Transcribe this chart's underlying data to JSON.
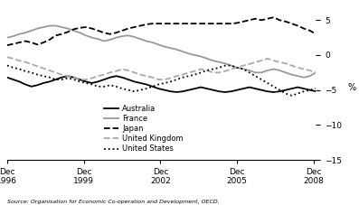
{
  "title": "",
  "ylabel": "%",
  "source_text": "Source: Organisation for Economic Co-operation and Development, OECD.",
  "ylim": [
    -15,
    7
  ],
  "yticks": [
    5,
    0,
    -5,
    -10,
    -15
  ],
  "x_start": 1996.917,
  "x_end": 2009.0,
  "xtick_positions": [
    1996.917,
    1999.917,
    2002.917,
    2005.917,
    2008.917
  ],
  "xtick_labels": [
    "Dec\n1996",
    "Dec\n1999",
    "Dec\n2002",
    "Dec\n2005",
    "Dec\n2008"
  ],
  "legend_entries": [
    "Australia",
    "France",
    "Japan",
    "United Kingdom",
    "United States"
  ],
  "line_colors": [
    "#000000",
    "#999999",
    "#000000",
    "#aaaaaa",
    "#000000"
  ],
  "line_styles": [
    "-",
    "-",
    "--",
    "--",
    ":"
  ],
  "line_widths": [
    1.3,
    1.3,
    1.3,
    1.3,
    1.3
  ],
  "background_color": "#ffffff",
  "australia": [
    -3.2,
    -3.5,
    -3.8,
    -4.2,
    -4.5,
    -4.3,
    -4.0,
    -3.8,
    -3.5,
    -3.2,
    -3.0,
    -3.2,
    -3.5,
    -3.8,
    -4.0,
    -3.8,
    -3.5,
    -3.2,
    -3.0,
    -3.2,
    -3.5,
    -3.8,
    -4.0,
    -4.2,
    -4.5,
    -4.8,
    -5.0,
    -5.2,
    -5.3,
    -5.2,
    -5.0,
    -4.8,
    -4.6,
    -4.8,
    -5.0,
    -5.2,
    -5.3,
    -5.2,
    -5.0,
    -4.8,
    -4.6,
    -4.8,
    -5.0,
    -5.2,
    -5.3,
    -5.2,
    -5.0,
    -4.8,
    -4.6,
    -4.8,
    -5.0,
    -5.2
  ],
  "france": [
    2.5,
    2.7,
    3.0,
    3.2,
    3.5,
    3.8,
    4.0,
    4.2,
    4.2,
    4.0,
    3.8,
    3.5,
    3.2,
    2.8,
    2.5,
    2.3,
    2.0,
    2.2,
    2.5,
    2.7,
    2.8,
    2.6,
    2.3,
    2.0,
    1.8,
    1.5,
    1.2,
    1.0,
    0.8,
    0.5,
    0.2,
    0.0,
    -0.2,
    -0.5,
    -0.8,
    -1.0,
    -1.2,
    -1.5,
    -1.8,
    -2.0,
    -2.2,
    -2.5,
    -2.5,
    -2.2,
    -2.0,
    -2.2,
    -2.5,
    -2.8,
    -3.0,
    -3.2,
    -3.0,
    -2.5
  ],
  "japan": [
    1.4,
    1.6,
    1.8,
    2.0,
    1.8,
    1.5,
    1.8,
    2.2,
    2.8,
    3.0,
    3.3,
    3.7,
    3.9,
    4.0,
    3.8,
    3.5,
    3.2,
    3.0,
    3.2,
    3.5,
    3.8,
    4.0,
    4.2,
    4.4,
    4.5,
    4.5,
    4.5,
    4.5,
    4.5,
    4.5,
    4.5,
    4.5,
    4.5,
    4.5,
    4.5,
    4.5,
    4.5,
    4.5,
    4.6,
    4.8,
    5.0,
    5.2,
    5.0,
    5.2,
    5.4,
    5.0,
    4.8,
    4.5,
    4.2,
    3.8,
    3.5,
    3.0
  ],
  "uk": [
    -0.3,
    -0.5,
    -0.8,
    -1.0,
    -1.3,
    -1.6,
    -1.9,
    -2.2,
    -2.5,
    -2.8,
    -3.0,
    -3.2,
    -3.5,
    -3.5,
    -3.3,
    -3.0,
    -2.8,
    -2.5,
    -2.3,
    -2.0,
    -2.2,
    -2.5,
    -2.8,
    -3.0,
    -3.2,
    -3.5,
    -3.5,
    -3.3,
    -3.0,
    -2.8,
    -2.5,
    -2.3,
    -2.0,
    -2.2,
    -2.5,
    -2.5,
    -2.3,
    -2.0,
    -1.8,
    -1.5,
    -1.3,
    -1.0,
    -0.8,
    -0.5,
    -0.8,
    -1.0,
    -1.2,
    -1.5,
    -1.8,
    -2.0,
    -2.2,
    -2.5
  ],
  "us": [
    -1.5,
    -1.8,
    -2.0,
    -2.3,
    -2.5,
    -2.8,
    -3.0,
    -3.2,
    -3.5,
    -3.5,
    -3.3,
    -3.5,
    -3.8,
    -4.0,
    -4.2,
    -4.5,
    -4.5,
    -4.3,
    -4.5,
    -4.8,
    -5.0,
    -5.2,
    -5.0,
    -4.8,
    -4.5,
    -4.2,
    -4.0,
    -3.8,
    -3.5,
    -3.2,
    -3.0,
    -2.8,
    -2.5,
    -2.2,
    -2.0,
    -1.8,
    -1.5,
    -1.5,
    -1.8,
    -2.0,
    -2.5,
    -3.0,
    -3.5,
    -4.0,
    -4.5,
    -5.0,
    -5.5,
    -5.8,
    -5.5,
    -5.2,
    -5.0,
    -4.8
  ]
}
